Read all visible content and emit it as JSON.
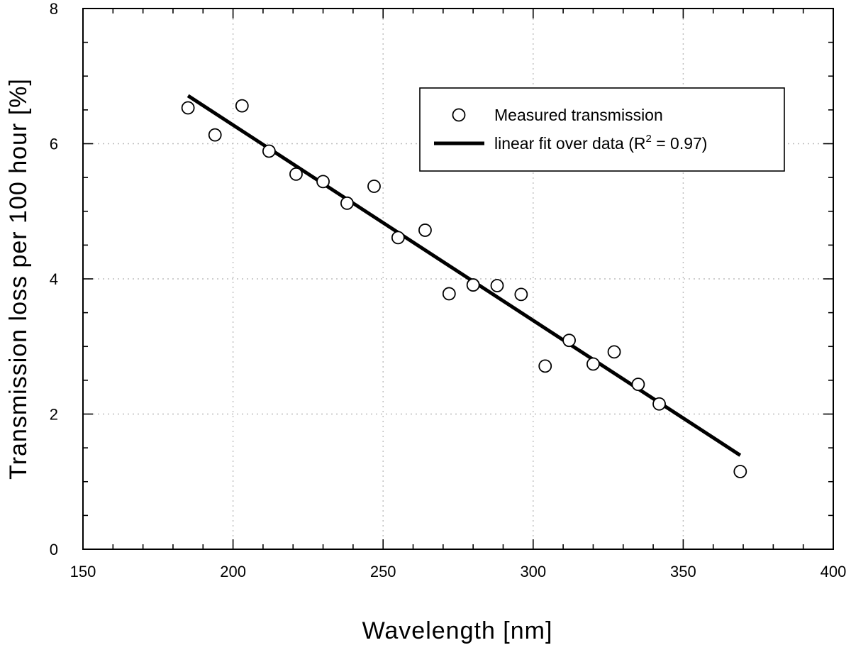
{
  "chart_data": {
    "type": "scatter",
    "title": "",
    "xlabel": "Wavelength [nm]",
    "ylabel": "Transmission loss per 100 hour [%]",
    "xlim": [
      150,
      400
    ],
    "ylim": [
      0,
      8
    ],
    "x_ticks": [
      150,
      200,
      250,
      300,
      350,
      400
    ],
    "y_ticks": [
      0,
      2,
      4,
      6,
      8
    ],
    "x_tick_labels": [
      "150",
      "200",
      "250",
      "300",
      "350",
      "400"
    ],
    "y_tick_labels": [
      "0",
      "2",
      "4",
      "6",
      "8"
    ],
    "grid": true,
    "legend_position": "top-right",
    "series": [
      {
        "name": "Measured transmission",
        "kind": "markers",
        "x": [
          185,
          194,
          203,
          212,
          221,
          230,
          238,
          247,
          255,
          264,
          272,
          280,
          288,
          296,
          304,
          312,
          320,
          327,
          335,
          342,
          369
        ],
        "y": [
          6.53,
          6.13,
          6.56,
          5.89,
          5.55,
          5.44,
          5.12,
          5.37,
          4.61,
          4.72,
          3.78,
          3.91,
          3.9,
          3.77,
          2.71,
          3.09,
          2.74,
          2.92,
          2.44,
          2.15,
          1.15
        ]
      },
      {
        "name": "linear fit over data (R² = 0.97)",
        "kind": "line",
        "x": [
          185,
          369
        ],
        "y": [
          6.71,
          1.39
        ]
      }
    ],
    "legend": {
      "marker_label": "Measured transmission",
      "fit_label_prefix": "linear fit over data (R",
      "fit_label_sup": "2",
      "fit_label_suffix": " = 0.97)"
    },
    "colors": {
      "marker_edge": "#000000",
      "marker_fill": "#ffffff",
      "fit_line": "#000000",
      "grid": "#bdbdbd"
    }
  }
}
